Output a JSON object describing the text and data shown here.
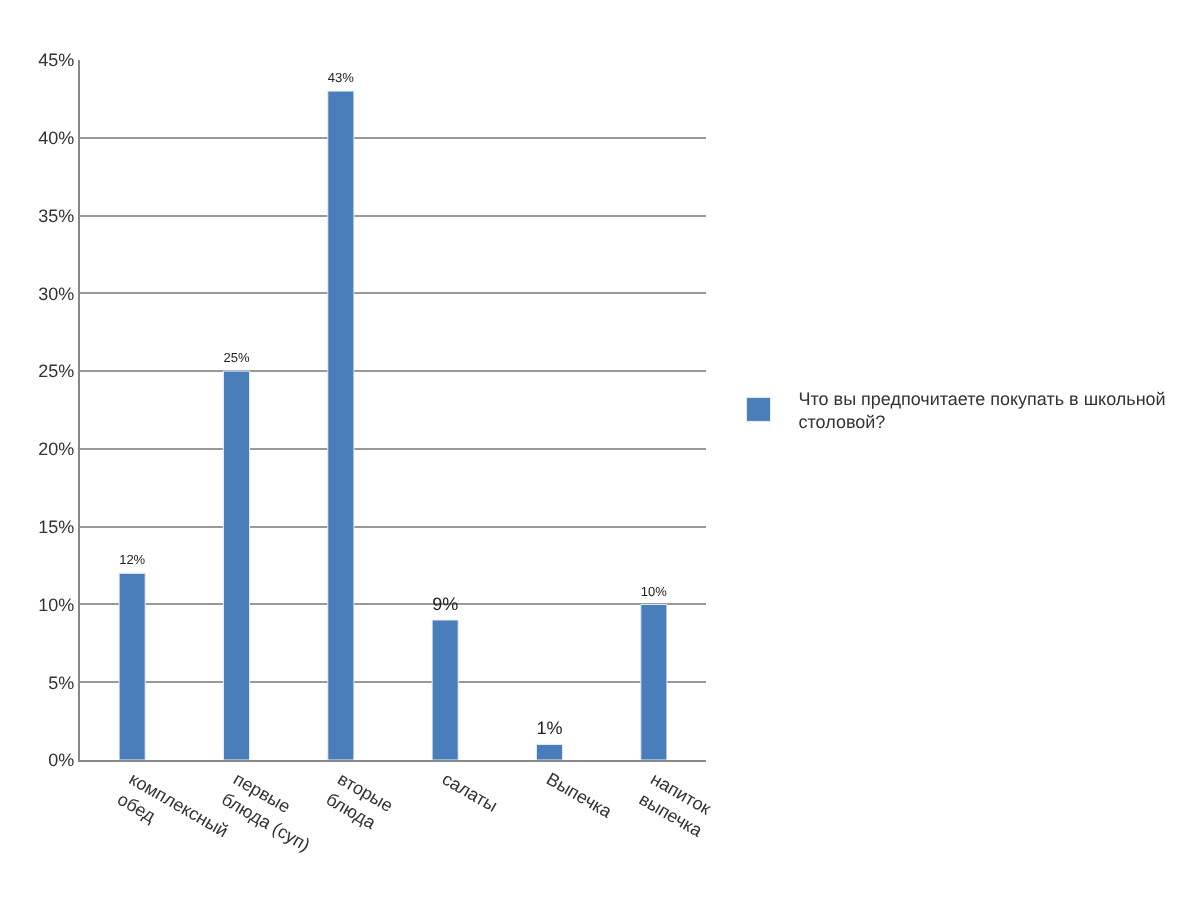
{
  "chart_data": {
    "type": "bar",
    "categories": [
      "комплексный обед",
      "первые блюда (суп)",
      "вторые блюда",
      "салаты",
      "Выпечка",
      "напиток выпечка"
    ],
    "series": [
      {
        "name": "Что вы предпочитаете покупать в школьной столовой?",
        "color": "#4a7ebb",
        "values": [
          12,
          25,
          43,
          9,
          1,
          10
        ],
        "value_labels": [
          "12%",
          "25%",
          "43%",
          "9%",
          "1%",
          "10%"
        ]
      }
    ],
    "ylim": [
      0,
      45
    ],
    "yticks": [
      {
        "value": 0,
        "label": "0%"
      },
      {
        "value": 5,
        "label": "5%"
      },
      {
        "value": 10,
        "label": "10%"
      },
      {
        "value": 15,
        "label": "15%"
      },
      {
        "value": 20,
        "label": "20%"
      },
      {
        "value": 25,
        "label": "25%"
      },
      {
        "value": 30,
        "label": "30%"
      },
      {
        "value": 35,
        "label": "35%"
      },
      {
        "value": 40,
        "label": "40%"
      },
      {
        "value": 45,
        "label": "45%"
      }
    ],
    "grid": "y",
    "legend": "right"
  }
}
